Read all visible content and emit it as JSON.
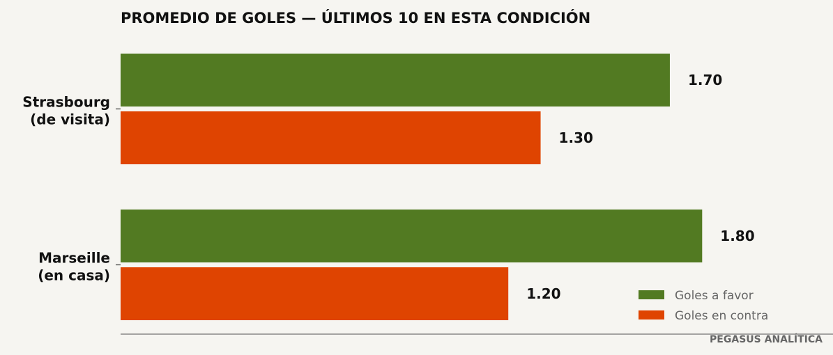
{
  "chart_data": {
    "type": "bar",
    "orientation": "horizontal",
    "title": "PROMEDIO DE GOLES — ÚLTIMOS 10 EN ESTA CONDICIÓN",
    "categories": [
      {
        "lines": [
          "Strasbourg",
          "(de visita)"
        ]
      },
      {
        "lines": [
          "Marseille",
          "(en casa)"
        ]
      }
    ],
    "series": [
      {
        "name": "Goles a favor",
        "color": "#527a22",
        "values": [
          1.7,
          1.8
        ],
        "labels": [
          "1.70",
          "1.80"
        ]
      },
      {
        "name": "Goles en contra",
        "color": "#df4401",
        "values": [
          1.3,
          1.2
        ],
        "labels": [
          "1.30",
          "1.20"
        ]
      }
    ],
    "xlim": [
      0,
      2.0
    ],
    "grid": false,
    "legend_position": "bottom-right",
    "credit": "PEGASUS ANALÍTICA"
  }
}
